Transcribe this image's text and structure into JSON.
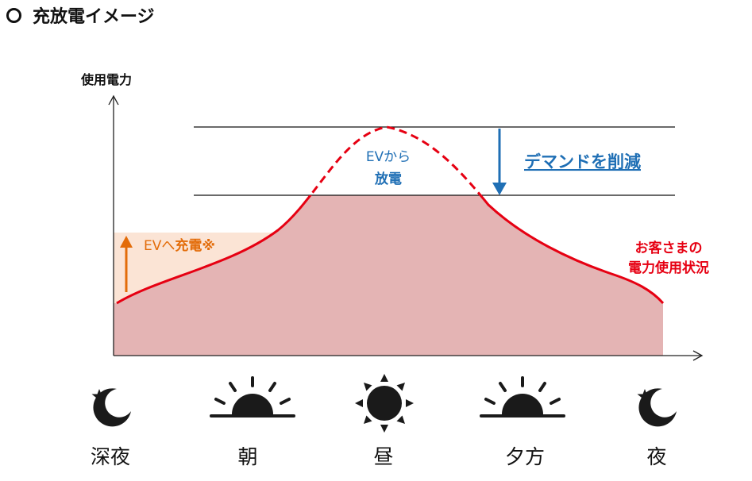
{
  "heading": {
    "title": "充放電イメージ"
  },
  "chart": {
    "y_axis_label": "使用電力",
    "charge_label_prefix": "EVへ",
    "charge_label_bold": "充電※",
    "discharge_label_line1": "EVから",
    "discharge_label_line2": "放電",
    "demand_label": "デマンドを削減",
    "usage_label_line1": "お客さまの",
    "usage_label_line2": "電力使用状況"
  },
  "timeline": [
    {
      "label": "深夜",
      "icon": "moon-star-icon"
    },
    {
      "label": "朝",
      "icon": "sunrise-icon"
    },
    {
      "label": "昼",
      "icon": "sun-icon"
    },
    {
      "label": "夕方",
      "icon": "sunset-icon"
    },
    {
      "label": "夜",
      "icon": "moon-star-icon"
    }
  ],
  "colors": {
    "usage_curve": "#e60012",
    "usage_fill": "#e4b4b4",
    "charge_fill": "#fbe4d5",
    "charge_accent": "#e36c09",
    "demand_accent": "#1f6fb5"
  }
}
